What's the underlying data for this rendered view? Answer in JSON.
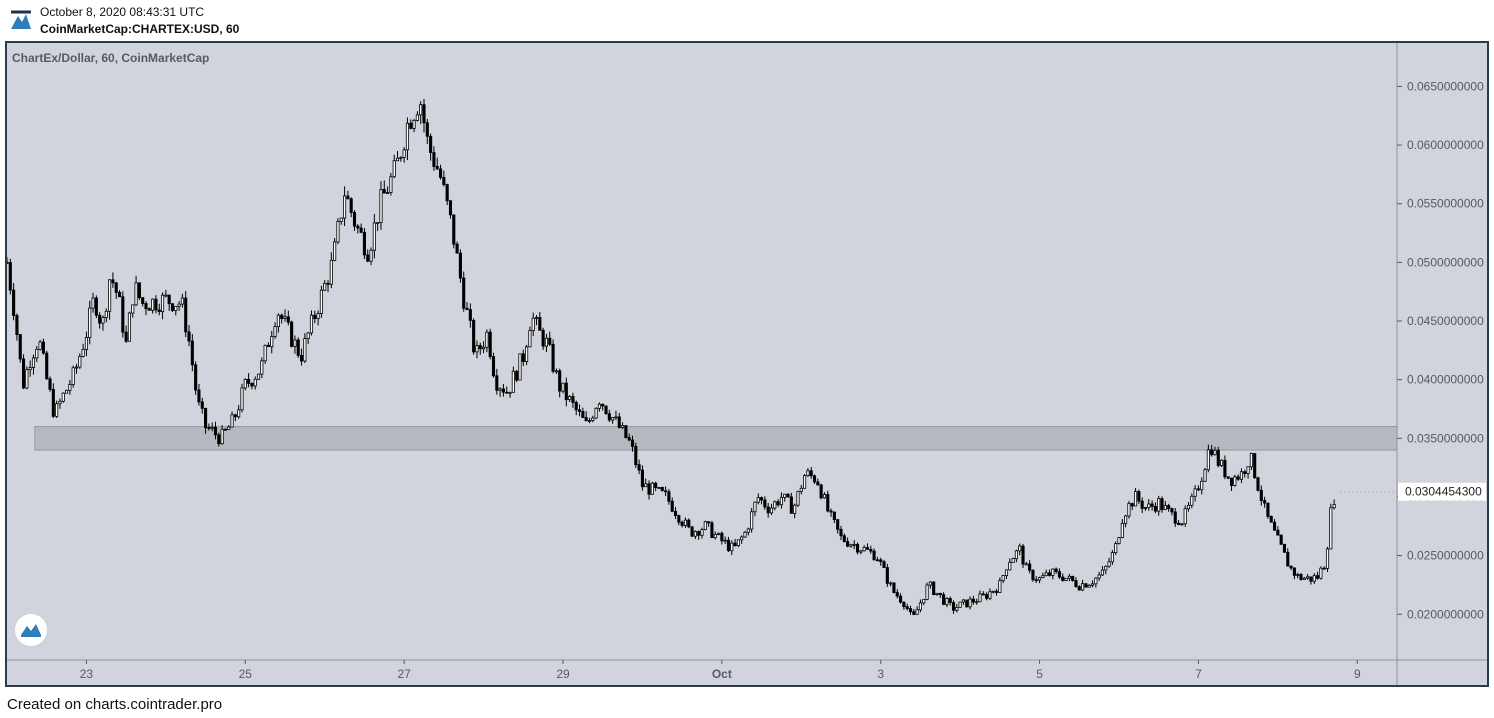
{
  "header": {
    "date": "October 8, 2020 08:43:31 UTC",
    "symbol": "CoinMarketCap:CHARTEX:USD, 60"
  },
  "footer": {
    "text": "Created on charts.cointrader.pro"
  },
  "colors": {
    "background": "#d1d4dc",
    "candle": "#000000",
    "zone": "#b5b7be",
    "axis_text": "#555a64",
    "frame": "#2a3b4a"
  },
  "icons": {
    "brand_logo": "cointrader-logo-icon",
    "watermark": "cointrader-watermark-icon"
  },
  "chart_data": {
    "type": "candlestick",
    "title": "ChartEx/Dollar, 60, CoinMarketCap",
    "x_tick_labels": [
      "23",
      "25",
      "27",
      "29",
      "Oct",
      "3",
      "5",
      "7",
      "9"
    ],
    "x_ticks_day": [
      23,
      25,
      27,
      29,
      31,
      33,
      35,
      37,
      39
    ],
    "x_range_days": [
      22.0,
      39.5
    ],
    "y_tick_values": [
      0.065,
      0.06,
      0.055,
      0.05,
      0.045,
      0.04,
      0.035,
      0.03,
      0.025,
      0.02
    ],
    "y_tick_labels": [
      "0.0650000000",
      "0.0600000000",
      "0.0550000000",
      "0.0500000000",
      "0.0450000000",
      "0.0400000000",
      "0.0350000000",
      "0.0300000000",
      "0.0250000000",
      "0.0200000000"
    ],
    "y_range": [
      0.0161,
      0.0687
    ],
    "last_price": 0.03044543,
    "last_price_label": "0.0304454300",
    "support_zone": {
      "from_day": 22.35,
      "to_day": 39.5,
      "low": 0.034,
      "high": 0.036
    },
    "price_path": [
      [
        22.0,
        0.05
      ],
      [
        22.1,
        0.0455
      ],
      [
        22.2,
        0.0395
      ],
      [
        22.3,
        0.042
      ],
      [
        22.4,
        0.0435
      ],
      [
        22.5,
        0.04
      ],
      [
        22.6,
        0.037
      ],
      [
        22.7,
        0.0385
      ],
      [
        22.85,
        0.0405
      ],
      [
        23.0,
        0.044
      ],
      [
        23.1,
        0.047
      ],
      [
        23.2,
        0.0445
      ],
      [
        23.3,
        0.049
      ],
      [
        23.4,
        0.047
      ],
      [
        23.5,
        0.043
      ],
      [
        23.6,
        0.048
      ],
      [
        23.7,
        0.0465
      ],
      [
        24.0,
        0.0468
      ],
      [
        24.2,
        0.0465
      ],
      [
        24.3,
        0.043
      ],
      [
        24.4,
        0.038
      ],
      [
        24.5,
        0.036
      ],
      [
        24.7,
        0.035
      ],
      [
        24.85,
        0.0365
      ],
      [
        25.0,
        0.0395
      ],
      [
        25.2,
        0.041
      ],
      [
        25.4,
        0.046
      ],
      [
        25.55,
        0.044
      ],
      [
        25.7,
        0.042
      ],
      [
        25.9,
        0.046
      ],
      [
        26.1,
        0.05
      ],
      [
        26.25,
        0.056
      ],
      [
        26.4,
        0.053
      ],
      [
        26.55,
        0.051
      ],
      [
        26.7,
        0.055
      ],
      [
        26.9,
        0.058
      ],
      [
        27.05,
        0.062
      ],
      [
        27.2,
        0.064
      ],
      [
        27.3,
        0.06
      ],
      [
        27.45,
        0.0575
      ],
      [
        27.6,
        0.053
      ],
      [
        27.75,
        0.047
      ],
      [
        27.9,
        0.042
      ],
      [
        28.05,
        0.044
      ],
      [
        28.15,
        0.04
      ],
      [
        28.3,
        0.039
      ],
      [
        28.5,
        0.042
      ],
      [
        28.6,
        0.0455
      ],
      [
        28.7,
        0.044
      ],
      [
        28.8,
        0.043
      ],
      [
        28.95,
        0.0395
      ],
      [
        29.1,
        0.038
      ],
      [
        29.3,
        0.036
      ],
      [
        29.45,
        0.0385
      ],
      [
        29.6,
        0.037
      ],
      [
        29.7,
        0.036
      ],
      [
        29.85,
        0.0345
      ],
      [
        30.0,
        0.031
      ],
      [
        30.15,
        0.0305
      ],
      [
        30.3,
        0.03
      ],
      [
        30.45,
        0.0285
      ],
      [
        30.6,
        0.027
      ],
      [
        30.8,
        0.0275
      ],
      [
        30.95,
        0.0265
      ],
      [
        31.15,
        0.0255
      ],
      [
        31.3,
        0.027
      ],
      [
        31.45,
        0.03
      ],
      [
        31.6,
        0.029
      ],
      [
        31.75,
        0.03
      ],
      [
        31.9,
        0.029
      ],
      [
        32.05,
        0.032
      ],
      [
        32.2,
        0.0315
      ],
      [
        32.35,
        0.0285
      ],
      [
        32.5,
        0.0265
      ],
      [
        32.65,
        0.026
      ],
      [
        32.8,
        0.0255
      ],
      [
        32.95,
        0.025
      ],
      [
        33.15,
        0.022
      ],
      [
        33.3,
        0.021
      ],
      [
        33.4,
        0.0195
      ],
      [
        33.5,
        0.021
      ],
      [
        33.6,
        0.0225
      ],
      [
        33.75,
        0.0215
      ],
      [
        33.9,
        0.0205
      ],
      [
        34.1,
        0.021
      ],
      [
        34.3,
        0.0215
      ],
      [
        34.5,
        0.0225
      ],
      [
        34.6,
        0.0245
      ],
      [
        34.75,
        0.0255
      ],
      [
        34.85,
        0.0235
      ],
      [
        35.0,
        0.023
      ],
      [
        35.15,
        0.0235
      ],
      [
        35.3,
        0.0232
      ],
      [
        35.5,
        0.0225
      ],
      [
        35.65,
        0.0228
      ],
      [
        35.8,
        0.0235
      ],
      [
        35.95,
        0.0255
      ],
      [
        36.05,
        0.0285
      ],
      [
        36.2,
        0.03
      ],
      [
        36.35,
        0.029
      ],
      [
        36.5,
        0.0295
      ],
      [
        36.65,
        0.0285
      ],
      [
        36.8,
        0.028
      ],
      [
        36.95,
        0.03
      ],
      [
        37.05,
        0.032
      ],
      [
        37.15,
        0.0345
      ],
      [
        37.25,
        0.033
      ],
      [
        37.4,
        0.0315
      ],
      [
        37.55,
        0.032
      ],
      [
        37.65,
        0.0335
      ],
      [
        37.75,
        0.031
      ],
      [
        37.85,
        0.0285
      ],
      [
        37.95,
        0.027
      ],
      [
        38.05,
        0.0255
      ],
      [
        38.15,
        0.024
      ],
      [
        38.25,
        0.0232
      ],
      [
        38.4,
        0.023
      ],
      [
        38.5,
        0.0232
      ],
      [
        38.6,
        0.0245
      ],
      [
        38.68,
        0.0295
      ],
      [
        38.74,
        0.0304
      ]
    ]
  }
}
